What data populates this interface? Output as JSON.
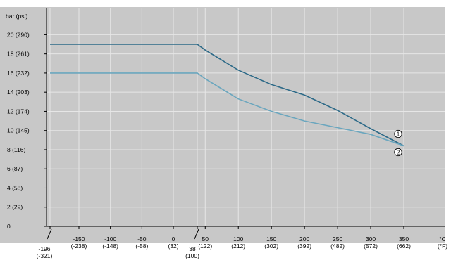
{
  "chart_data": {
    "type": "line",
    "ylabel": "bar (psi)",
    "xunit": [
      "°C",
      "(°F)"
    ],
    "ylim": [
      0,
      21
    ],
    "yticks": [
      {
        "v": 0,
        "label": "0"
      },
      {
        "v": 2,
        "label": "2 (29)"
      },
      {
        "v": 4,
        "label": "4 (58)"
      },
      {
        "v": 6,
        "label": "6 (87)"
      },
      {
        "v": 8,
        "label": "8 (116)"
      },
      {
        "v": 10,
        "label": "10 (145)"
      },
      {
        "v": 12,
        "label": "12 (174)"
      },
      {
        "v": 14,
        "label": "14 (203)"
      },
      {
        "v": 16,
        "label": "16 (232)"
      },
      {
        "v": 18,
        "label": "18 (261)"
      },
      {
        "v": 20,
        "label": "20 (290)"
      }
    ],
    "xticks": [
      {
        "v": -196,
        "c": "-196",
        "f": "(-321)"
      },
      {
        "v": -150,
        "c": "-150",
        "f": "(-238)"
      },
      {
        "v": -100,
        "c": "-100",
        "f": "(-148)"
      },
      {
        "v": -50,
        "c": "-50",
        "f": "(-58)"
      },
      {
        "v": 0,
        "c": "0",
        "f": "(32)"
      },
      {
        "v": 38,
        "c": "38",
        "f": "(100)"
      },
      {
        "v": 50,
        "c": "50",
        "f": "(122)"
      },
      {
        "v": 100,
        "c": "100",
        "f": "(212)"
      },
      {
        "v": 150,
        "c": "150",
        "f": "(302)"
      },
      {
        "v": 200,
        "c": "200",
        "f": "(392)"
      },
      {
        "v": 250,
        "c": "250",
        "f": "(482)"
      },
      {
        "v": 300,
        "c": "300",
        "f": "(572)"
      },
      {
        "v": 350,
        "c": "350",
        "f": "(662)"
      }
    ],
    "series": [
      {
        "name": "1",
        "color": "#2d6a88",
        "x": [
          -196,
          38,
          50,
          100,
          150,
          200,
          250,
          300,
          350
        ],
        "y": [
          19.0,
          19.0,
          18.4,
          16.3,
          14.8,
          13.7,
          12.1,
          10.2,
          8.4
        ]
      },
      {
        "name": "2",
        "color": "#6aa6be",
        "x": [
          -196,
          38,
          50,
          100,
          150,
          200,
          250,
          300,
          350
        ],
        "y": [
          16.0,
          16.0,
          15.4,
          13.3,
          12.0,
          11.0,
          10.3,
          9.6,
          8.4
        ]
      }
    ]
  },
  "colors": {
    "plot_background": "#c8c8c8",
    "grid": "#e6e6e6",
    "axis": "#000000"
  }
}
